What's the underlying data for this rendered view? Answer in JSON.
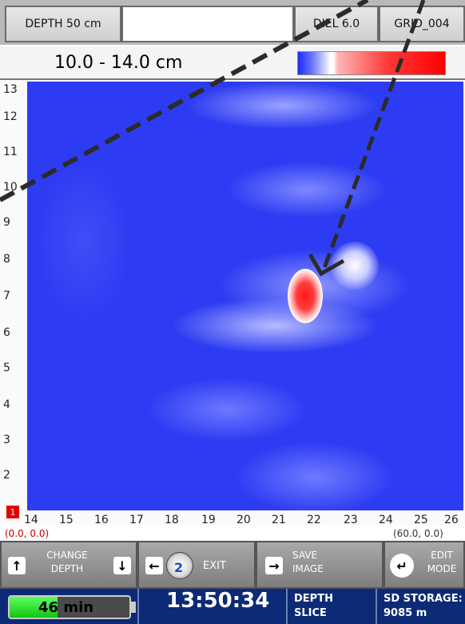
{
  "header": {
    "depth": "DEPTH 50 cm",
    "diel": "DIEL 6.0",
    "grid": "GRID_004"
  },
  "range": {
    "label": "10.0 - 14.0 cm"
  },
  "plot": {
    "y_ticks": [
      "13",
      "12",
      "11",
      "10",
      "9",
      "8",
      "7",
      "6",
      "5",
      "4",
      "3",
      "2"
    ],
    "origin_marker": "1",
    "x_ticks": [
      "14",
      "15",
      "16",
      "17",
      "18",
      "19",
      "20",
      "21",
      "22",
      "23",
      "24",
      "25",
      "26"
    ],
    "coord_origin": "(0.0, 0.0)",
    "coord_end": "(60.0, 0.0)"
  },
  "controls": {
    "change_depth_line1": "CHANGE",
    "change_depth_line2": "DEPTH",
    "exit_badge": "2",
    "exit_label": "EXIT",
    "save_line1": "SAVE",
    "save_line2": "IMAGE",
    "edit_line1": "EDIT",
    "edit_line2": "MODE"
  },
  "footer": {
    "battery_label": "46 min",
    "battery_level": 0.4,
    "clock": "13:50:34",
    "view_line1": "DEPTH",
    "view_line2": "SLICE",
    "storage_line1": "SD STORAGE:",
    "storage_line2": "9085 m"
  },
  "colors": {
    "background_blue": "#2d3cf2",
    "target_red": "#ff1a1a",
    "footer_navy": "#0c2a75"
  }
}
